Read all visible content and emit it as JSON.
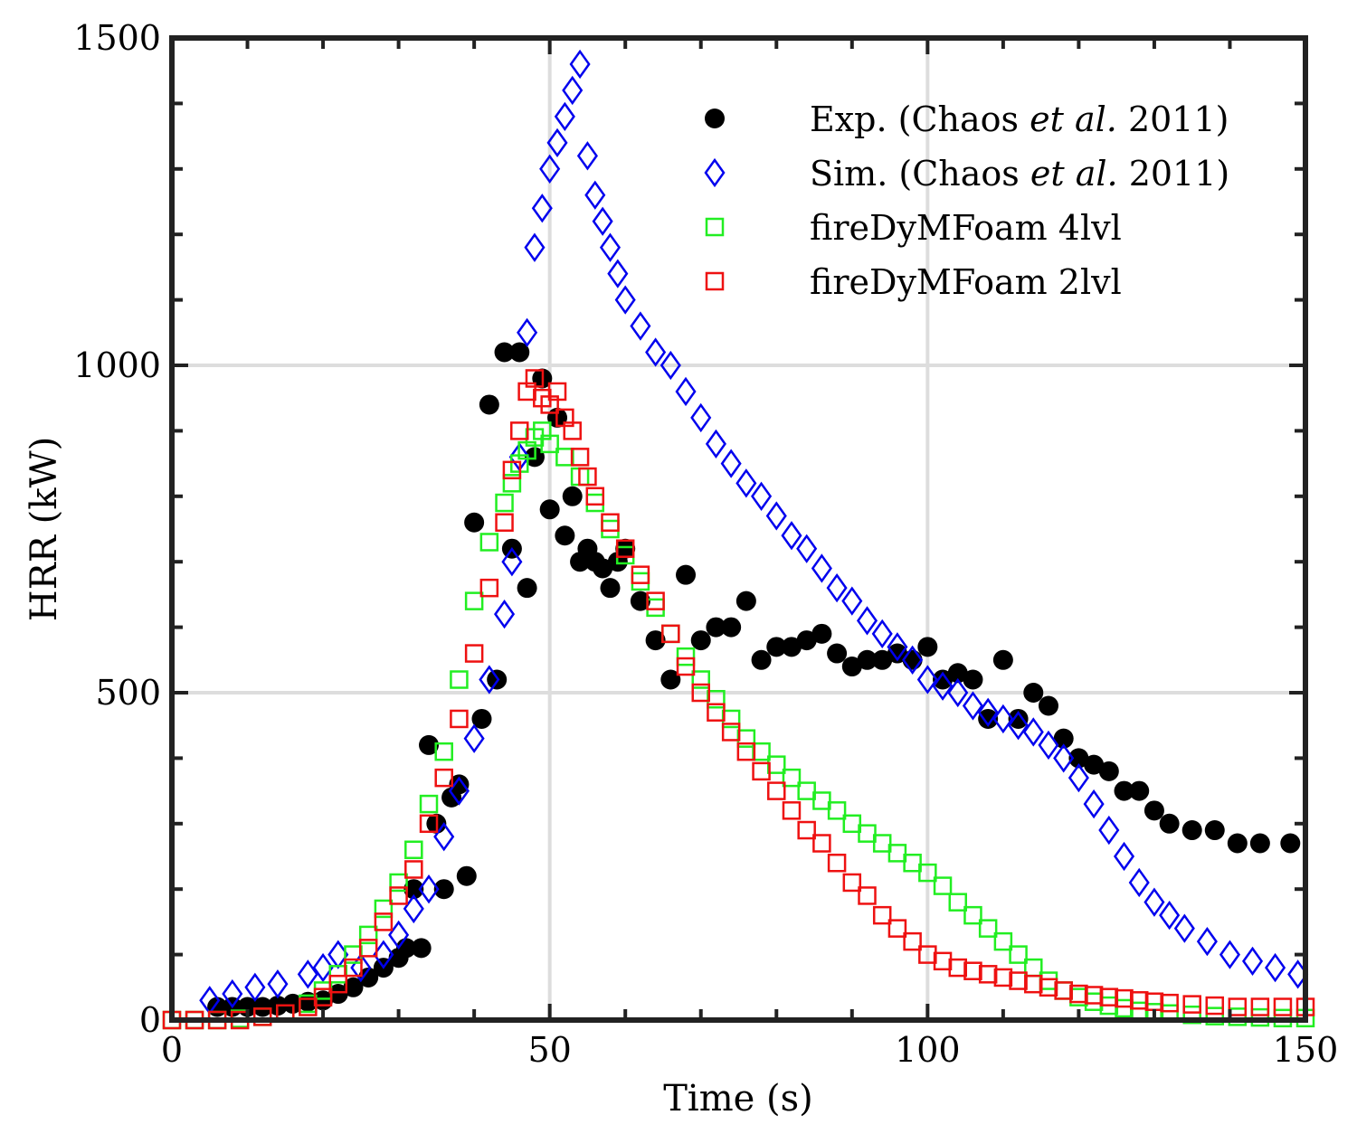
{
  "chart_data": {
    "type": "scatter",
    "title": "",
    "xlabel": "Time (s)",
    "ylabel": "HRR (kW)",
    "xlim": [
      0,
      150
    ],
    "ylim": [
      0,
      1500
    ],
    "xticks": [
      0,
      50,
      100,
      150
    ],
    "xtick_labels": [
      "0",
      "50",
      "100",
      "150"
    ],
    "yticks": [
      0,
      500,
      1000,
      1500
    ],
    "ytick_labels": [
      "0",
      "500",
      "1000",
      "1500"
    ],
    "grid": true,
    "legend_position": "top-right",
    "legend": [
      {
        "parts": [
          "Exp. (Chaos ",
          "et al.",
          " 2011)"
        ]
      },
      {
        "parts": [
          "Sim. (Chaos ",
          "et al.",
          " 2011)"
        ]
      },
      {
        "parts": [
          "fireDyMFoam 4lvl"
        ]
      },
      {
        "parts": [
          "fireDyMFoam 2lvl"
        ]
      }
    ],
    "series": [
      {
        "name": "Exp. (Chaos et al. 2011)",
        "marker": "circle-filled",
        "color": "#000000",
        "x": [
          6,
          8,
          10,
          12,
          14,
          16,
          18,
          20,
          22,
          24,
          26,
          28,
          30,
          31,
          32,
          33,
          34,
          35,
          36,
          37,
          38,
          39,
          40,
          41,
          42,
          43,
          44,
          45,
          46,
          47,
          48,
          49,
          50,
          51,
          52,
          53,
          54,
          55,
          56,
          57,
          58,
          59,
          60,
          62,
          64,
          66,
          68,
          70,
          72,
          74,
          76,
          78,
          80,
          82,
          84,
          86,
          88,
          90,
          92,
          94,
          96,
          98,
          100,
          102,
          104,
          106,
          108,
          110,
          112,
          114,
          116,
          118,
          120,
          122,
          124,
          126,
          128,
          130,
          132,
          135,
          138,
          141,
          144,
          148
        ],
        "y": [
          20,
          20,
          20,
          20,
          22,
          25,
          28,
          30,
          40,
          50,
          65,
          80,
          95,
          110,
          200,
          110,
          420,
          300,
          200,
          340,
          360,
          220,
          760,
          460,
          940,
          520,
          1020,
          720,
          1020,
          660,
          860,
          980,
          780,
          920,
          740,
          800,
          700,
          720,
          700,
          690,
          660,
          700,
          720,
          640,
          580,
          520,
          680,
          580,
          600,
          600,
          640,
          550,
          570,
          570,
          580,
          590,
          560,
          540,
          550,
          550,
          560,
          550,
          570,
          520,
          530,
          520,
          460,
          550,
          460,
          500,
          480,
          430,
          400,
          390,
          380,
          350,
          350,
          320,
          300,
          290,
          290,
          270,
          270,
          270
        ]
      },
      {
        "name": "Sim. (Chaos et al. 2011)",
        "marker": "diamond-open",
        "color": "#0000ee",
        "x": [
          5,
          8,
          11,
          14,
          18,
          20,
          22,
          25,
          28,
          30,
          32,
          34,
          36,
          38,
          40,
          42,
          44,
          45,
          46,
          47,
          48,
          49,
          50,
          51,
          52,
          53,
          54,
          55,
          56,
          57,
          58,
          59,
          60,
          62,
          64,
          66,
          68,
          70,
          72,
          74,
          76,
          78,
          80,
          82,
          84,
          86,
          88,
          90,
          92,
          94,
          96,
          98,
          100,
          102,
          104,
          106,
          108,
          110,
          112,
          114,
          116,
          118,
          120,
          122,
          124,
          126,
          128,
          130,
          132,
          134,
          137,
          140,
          143,
          146,
          149
        ],
        "y": [
          30,
          40,
          50,
          55,
          70,
          80,
          100,
          80,
          100,
          130,
          170,
          200,
          280,
          350,
          430,
          520,
          620,
          700,
          860,
          1050,
          1180,
          1240,
          1300,
          1340,
          1380,
          1420,
          1460,
          1320,
          1260,
          1220,
          1180,
          1140,
          1100,
          1060,
          1020,
          1000,
          960,
          920,
          880,
          850,
          820,
          800,
          770,
          740,
          720,
          690,
          660,
          640,
          610,
          590,
          570,
          550,
          520,
          510,
          500,
          480,
          470,
          460,
          450,
          440,
          420,
          400,
          370,
          330,
          290,
          250,
          210,
          180,
          160,
          140,
          120,
          100,
          90,
          80,
          70
        ]
      },
      {
        "name": "fireDyMFoam 4lvl",
        "marker": "square-open",
        "color": "#22ee22",
        "x": [
          0,
          3,
          6,
          9,
          12,
          15,
          18,
          20,
          22,
          24,
          26,
          28,
          30,
          32,
          34,
          36,
          38,
          40,
          42,
          44,
          45,
          46,
          47,
          48,
          49,
          50,
          52,
          54,
          56,
          58,
          60,
          62,
          64,
          66,
          68,
          70,
          72,
          74,
          76,
          78,
          80,
          82,
          84,
          86,
          88,
          90,
          92,
          94,
          96,
          98,
          100,
          102,
          104,
          106,
          108,
          110,
          112,
          114,
          116,
          118,
          120,
          122,
          124,
          126,
          128,
          130,
          132,
          135,
          138,
          141,
          144,
          147,
          150
        ],
        "y": [
          0,
          0,
          0,
          2,
          5,
          10,
          25,
          45,
          70,
          100,
          130,
          170,
          210,
          260,
          330,
          410,
          520,
          640,
          730,
          790,
          820,
          850,
          870,
          890,
          900,
          880,
          860,
          830,
          790,
          750,
          710,
          670,
          630,
          590,
          555,
          520,
          490,
          460,
          430,
          410,
          390,
          370,
          350,
          335,
          320,
          300,
          285,
          270,
          255,
          240,
          225,
          205,
          180,
          160,
          140,
          120,
          100,
          80,
          60,
          45,
          35,
          28,
          22,
          18,
          14,
          12,
          10,
          8,
          6,
          5,
          4,
          3,
          3
        ]
      },
      {
        "name": "fireDyMFoam 2lvl",
        "marker": "square-open",
        "color": "#ee1111",
        "x": [
          0,
          3,
          6,
          9,
          12,
          15,
          18,
          20,
          22,
          24,
          26,
          28,
          30,
          32,
          34,
          36,
          38,
          40,
          42,
          44,
          45,
          46,
          47,
          48,
          49,
          50,
          51,
          52,
          53,
          54,
          55,
          56,
          58,
          60,
          62,
          64,
          66,
          68,
          70,
          72,
          74,
          76,
          78,
          80,
          82,
          84,
          86,
          88,
          90,
          92,
          94,
          96,
          98,
          100,
          102,
          104,
          106,
          108,
          110,
          112,
          114,
          116,
          118,
          120,
          122,
          124,
          126,
          128,
          130,
          132,
          135,
          138,
          141,
          144,
          147,
          150
        ],
        "y": [
          0,
          0,
          0,
          0,
          5,
          10,
          20,
          35,
          55,
          80,
          110,
          150,
          190,
          230,
          300,
          370,
          460,
          560,
          660,
          760,
          840,
          900,
          960,
          980,
          950,
          940,
          960,
          920,
          900,
          860,
          830,
          800,
          760,
          720,
          680,
          640,
          590,
          540,
          500,
          470,
          440,
          410,
          380,
          350,
          320,
          290,
          270,
          240,
          210,
          190,
          160,
          140,
          120,
          100,
          90,
          80,
          75,
          70,
          65,
          60,
          55,
          50,
          45,
          40,
          38,
          35,
          33,
          30,
          28,
          26,
          24,
          22,
          20,
          20,
          20,
          20
        ]
      }
    ]
  }
}
